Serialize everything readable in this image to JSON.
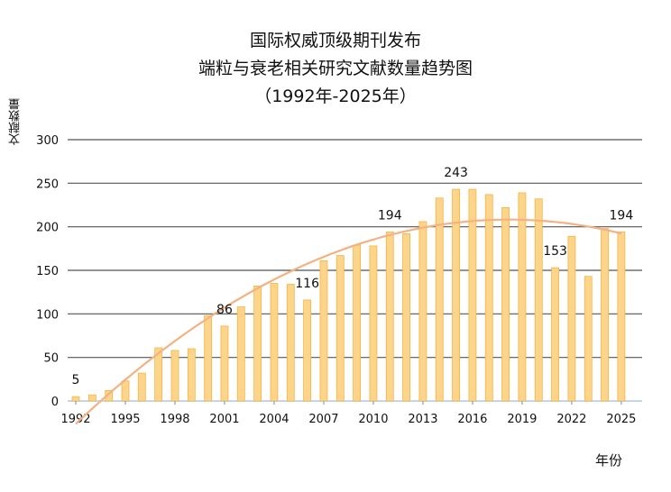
{
  "chart_data": {
    "type": "bar",
    "title_lines": [
      "国际权威顶级期刊发布",
      "端粒与衰老相关研究文献数量趋势图",
      "（1992年-2025年）"
    ],
    "xlabel": "年份",
    "ylabel": "文献数量",
    "ylim": [
      0,
      300
    ],
    "yticks": [
      "0",
      "50",
      "100",
      "150",
      "200",
      "250",
      "300"
    ],
    "grid": true,
    "x": [
      1992,
      1993,
      1994,
      1995,
      1996,
      1997,
      1998,
      1999,
      2000,
      2001,
      2002,
      2003,
      2004,
      2005,
      2006,
      2007,
      2008,
      2009,
      2010,
      2011,
      2012,
      2013,
      2014,
      2015,
      2016,
      2017,
      2018,
      2019,
      2020,
      2021,
      2022,
      2023,
      2024,
      2025
    ],
    "xtick_labels": [
      "1992",
      "1995",
      "1998",
      "2001",
      "2004",
      "2007",
      "2010",
      "2013",
      "2016",
      "2019",
      "2022",
      "2025"
    ],
    "values": [
      5,
      7,
      12,
      23,
      32,
      61,
      58,
      60,
      98,
      86,
      108,
      132,
      135,
      134,
      116,
      161,
      167,
      179,
      178,
      194,
      192,
      206,
      233,
      243,
      243,
      237,
      222,
      239,
      232,
      153,
      189,
      143,
      198,
      194
    ],
    "data_labels": [
      {
        "x": 1992,
        "text": "5"
      },
      {
        "x": 2001,
        "text": "86"
      },
      {
        "x": 2006,
        "text": "116"
      },
      {
        "x": 2011,
        "text": "194"
      },
      {
        "x": 2015,
        "text": "243"
      },
      {
        "x": 2021,
        "text": "153"
      },
      {
        "x": 2025,
        "text": "194"
      }
    ],
    "trendline": {
      "type": "polynomial",
      "order": 2
    },
    "colors": {
      "bar_fill": "#fdd58a",
      "bar_edge": "#f5b445",
      "trend": "#f4b183",
      "grid": "#555555"
    }
  }
}
